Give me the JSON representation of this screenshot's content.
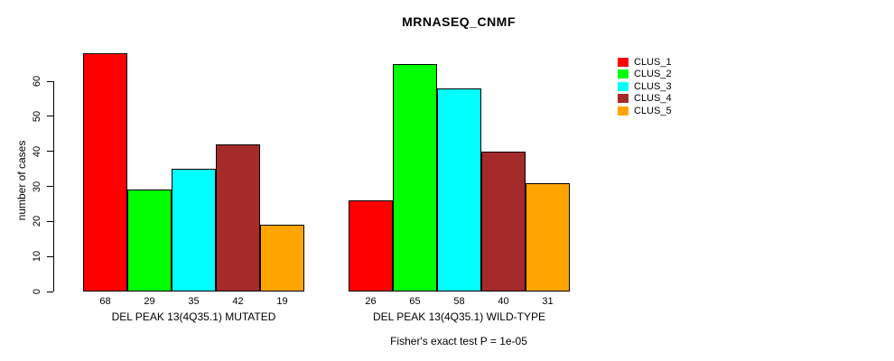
{
  "title": "MRNASEQ_CNMF",
  "footer": "Fisher's exact test P = 1e-05",
  "chart_data": {
    "type": "bar",
    "title": "MRNASEQ_CNMF",
    "xlabel": "",
    "ylabel": "number of cases",
    "ylim": [
      0,
      68
    ],
    "yticks": [
      0,
      10,
      20,
      30,
      40,
      50,
      60
    ],
    "grid": false,
    "legend_position": "right-outside",
    "bar_value_labels_shown": true,
    "series": [
      {
        "name": "CLUS_1",
        "color": "#FF0000"
      },
      {
        "name": "CLUS_2",
        "color": "#00FF00"
      },
      {
        "name": "CLUS_3",
        "color": "#00FFFF"
      },
      {
        "name": "CLUS_4",
        "color": "#A52A2A"
      },
      {
        "name": "CLUS_5",
        "color": "#FFA500"
      }
    ],
    "groups": [
      {
        "label": "DEL PEAK 13(4Q35.1) MUTATED",
        "values": [
          68,
          29,
          35,
          42,
          19
        ]
      },
      {
        "label": "DEL PEAK 13(4Q35.1) WILD-TYPE",
        "values": [
          26,
          65,
          58,
          40,
          31
        ]
      }
    ],
    "annotation": "Fisher's exact test P = 1e-05"
  }
}
